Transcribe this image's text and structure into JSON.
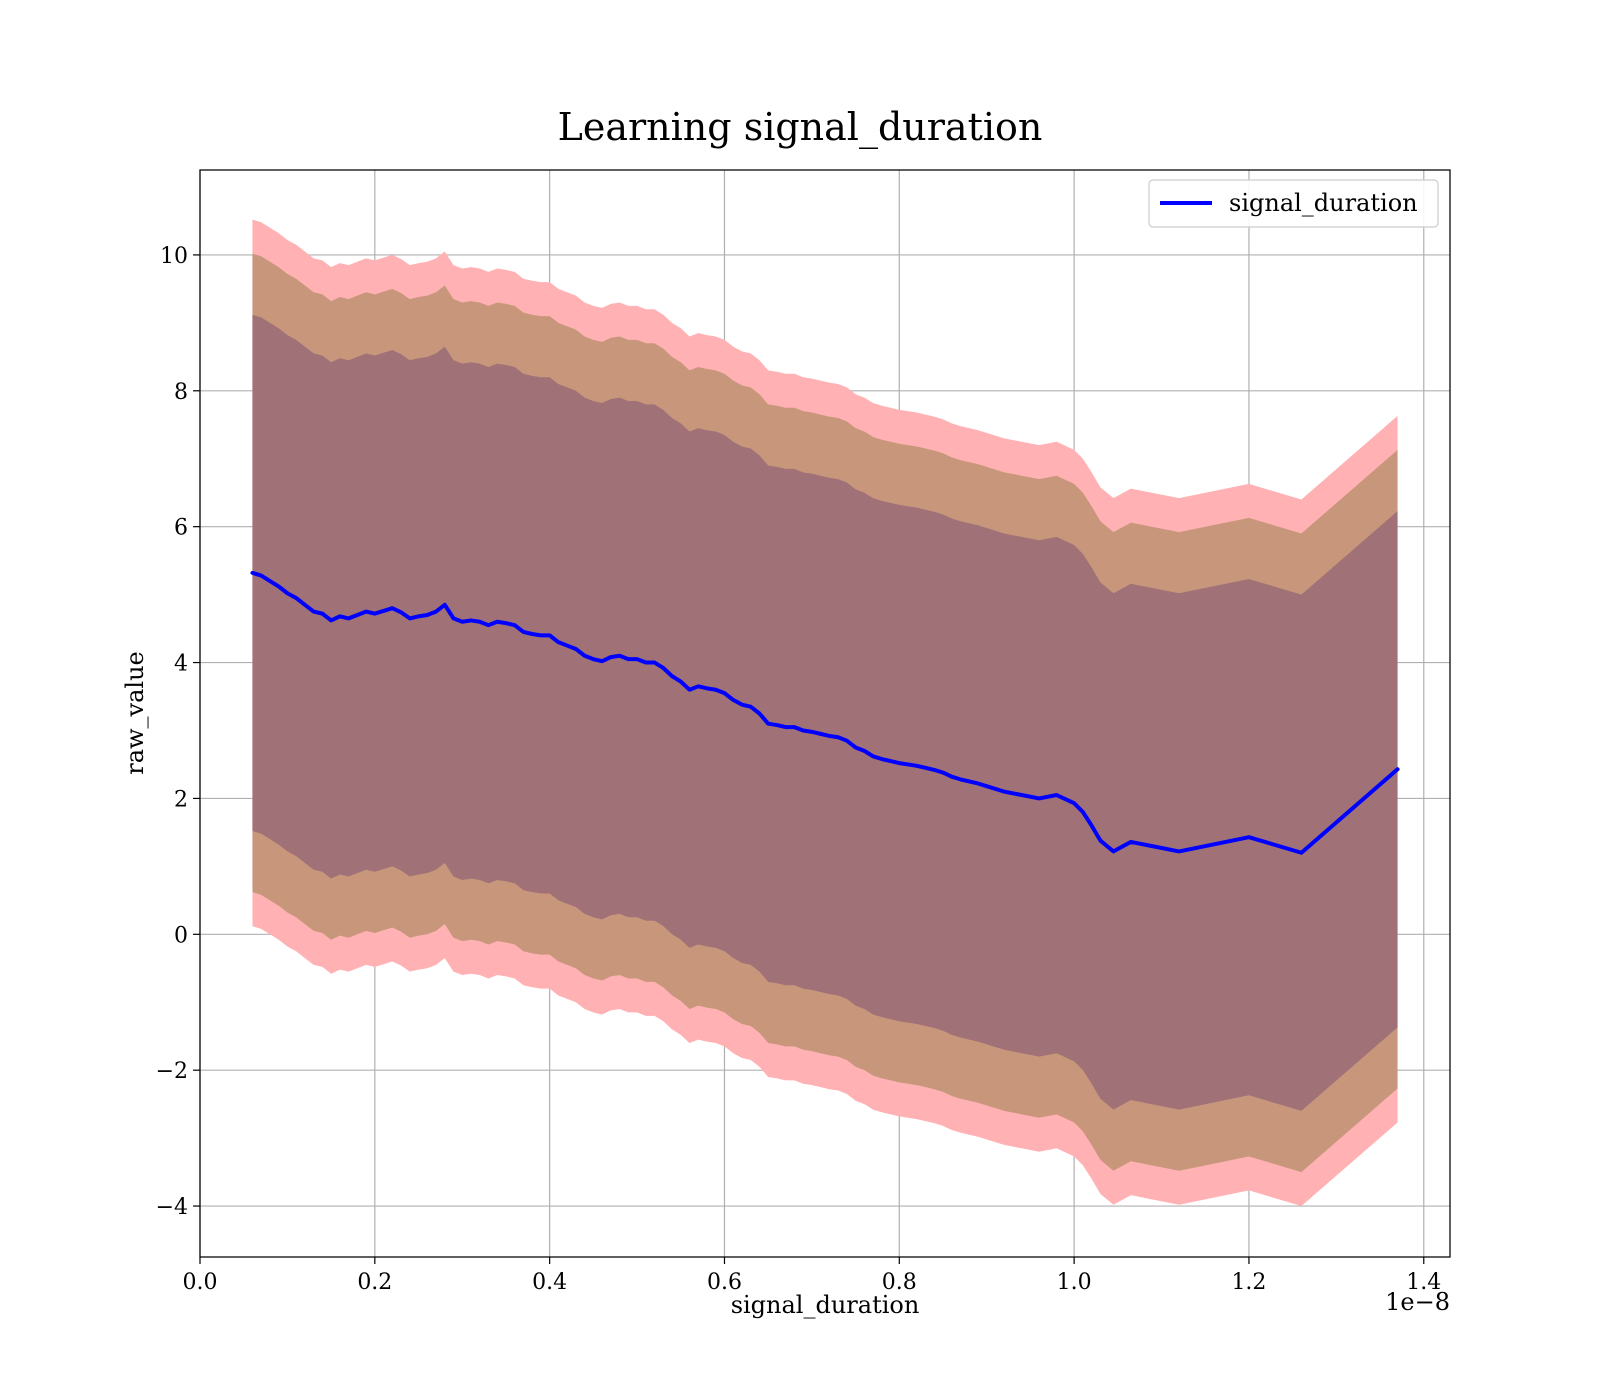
{
  "chart_data": {
    "type": "line",
    "title": "Learning signal_duration",
    "xlabel": "signal_duration",
    "ylabel": "raw_value",
    "x_offset_label": "1e−8",
    "x_scale_exponent": -8,
    "xlim": [
      0.0,
      1.43
    ],
    "ylim": [
      -4.75,
      11.25
    ],
    "x_ticks": [
      0.0,
      0.2,
      0.4,
      0.6,
      0.8,
      1.0,
      1.2,
      1.4
    ],
    "x_tick_labels": [
      "0.0",
      "0.2",
      "0.4",
      "0.6",
      "0.8",
      "1.0",
      "1.2",
      "1.4"
    ],
    "y_ticks": [
      -4,
      -2,
      0,
      2,
      4,
      6,
      8,
      10
    ],
    "y_tick_labels": [
      "−4",
      "−2",
      "0",
      "2",
      "4",
      "6",
      "8",
      "10"
    ],
    "grid": true,
    "legend": {
      "placement": "top-right",
      "entries": [
        "signal_duration"
      ]
    },
    "colors": {
      "line": "#0000ff",
      "band_outer": "#ffb1b4",
      "band_middle": "#c8977b",
      "band_inner": "#a07278",
      "grid": "#b0b0b0"
    },
    "bands": [
      {
        "level": "outer",
        "width_sigma": 5.2
      },
      {
        "level": "middle",
        "width_sigma": 4.7
      },
      {
        "level": "inner",
        "width_sigma": 3.8
      }
    ],
    "series": [
      {
        "name": "signal_duration",
        "x": [
          0.06,
          0.07,
          0.08,
          0.09,
          0.1,
          0.11,
          0.12,
          0.13,
          0.14,
          0.15,
          0.16,
          0.17,
          0.18,
          0.19,
          0.2,
          0.21,
          0.22,
          0.23,
          0.24,
          0.25,
          0.26,
          0.27,
          0.28,
          0.29,
          0.3,
          0.31,
          0.32,
          0.33,
          0.34,
          0.35,
          0.36,
          0.37,
          0.38,
          0.39,
          0.4,
          0.41,
          0.42,
          0.43,
          0.44,
          0.45,
          0.46,
          0.47,
          0.48,
          0.49,
          0.5,
          0.51,
          0.52,
          0.53,
          0.54,
          0.55,
          0.56,
          0.57,
          0.58,
          0.59,
          0.6,
          0.61,
          0.62,
          0.63,
          0.64,
          0.65,
          0.66,
          0.67,
          0.68,
          0.69,
          0.7,
          0.71,
          0.72,
          0.73,
          0.74,
          0.75,
          0.76,
          0.77,
          0.78,
          0.79,
          0.8,
          0.81,
          0.82,
          0.83,
          0.84,
          0.85,
          0.86,
          0.87,
          0.88,
          0.89,
          0.9,
          0.92,
          0.94,
          0.96,
          0.98,
          1.0,
          1.01,
          1.02,
          1.03,
          1.045,
          1.065,
          1.12,
          1.2,
          1.26,
          1.37
        ],
        "y": [
          5.32,
          5.28,
          5.2,
          5.12,
          5.02,
          4.95,
          4.85,
          4.75,
          4.72,
          4.62,
          4.68,
          4.65,
          4.7,
          4.75,
          4.72,
          4.76,
          4.8,
          4.74,
          4.65,
          4.68,
          4.7,
          4.75,
          4.85,
          4.65,
          4.6,
          4.62,
          4.6,
          4.55,
          4.6,
          4.58,
          4.55,
          4.45,
          4.42,
          4.4,
          4.4,
          4.3,
          4.25,
          4.2,
          4.1,
          4.05,
          4.02,
          4.08,
          4.1,
          4.05,
          4.05,
          4.0,
          4.0,
          3.92,
          3.8,
          3.72,
          3.6,
          3.65,
          3.62,
          3.6,
          3.55,
          3.45,
          3.38,
          3.35,
          3.25,
          3.1,
          3.08,
          3.05,
          3.05,
          3.0,
          2.98,
          2.95,
          2.92,
          2.9,
          2.85,
          2.75,
          2.7,
          2.62,
          2.58,
          2.55,
          2.52,
          2.5,
          2.48,
          2.45,
          2.42,
          2.38,
          2.32,
          2.28,
          2.25,
          2.22,
          2.18,
          2.1,
          2.05,
          2.0,
          2.05,
          1.93,
          1.8,
          1.6,
          1.38,
          1.22,
          1.36,
          1.22,
          1.43,
          1.2,
          2.43
        ]
      }
    ]
  }
}
